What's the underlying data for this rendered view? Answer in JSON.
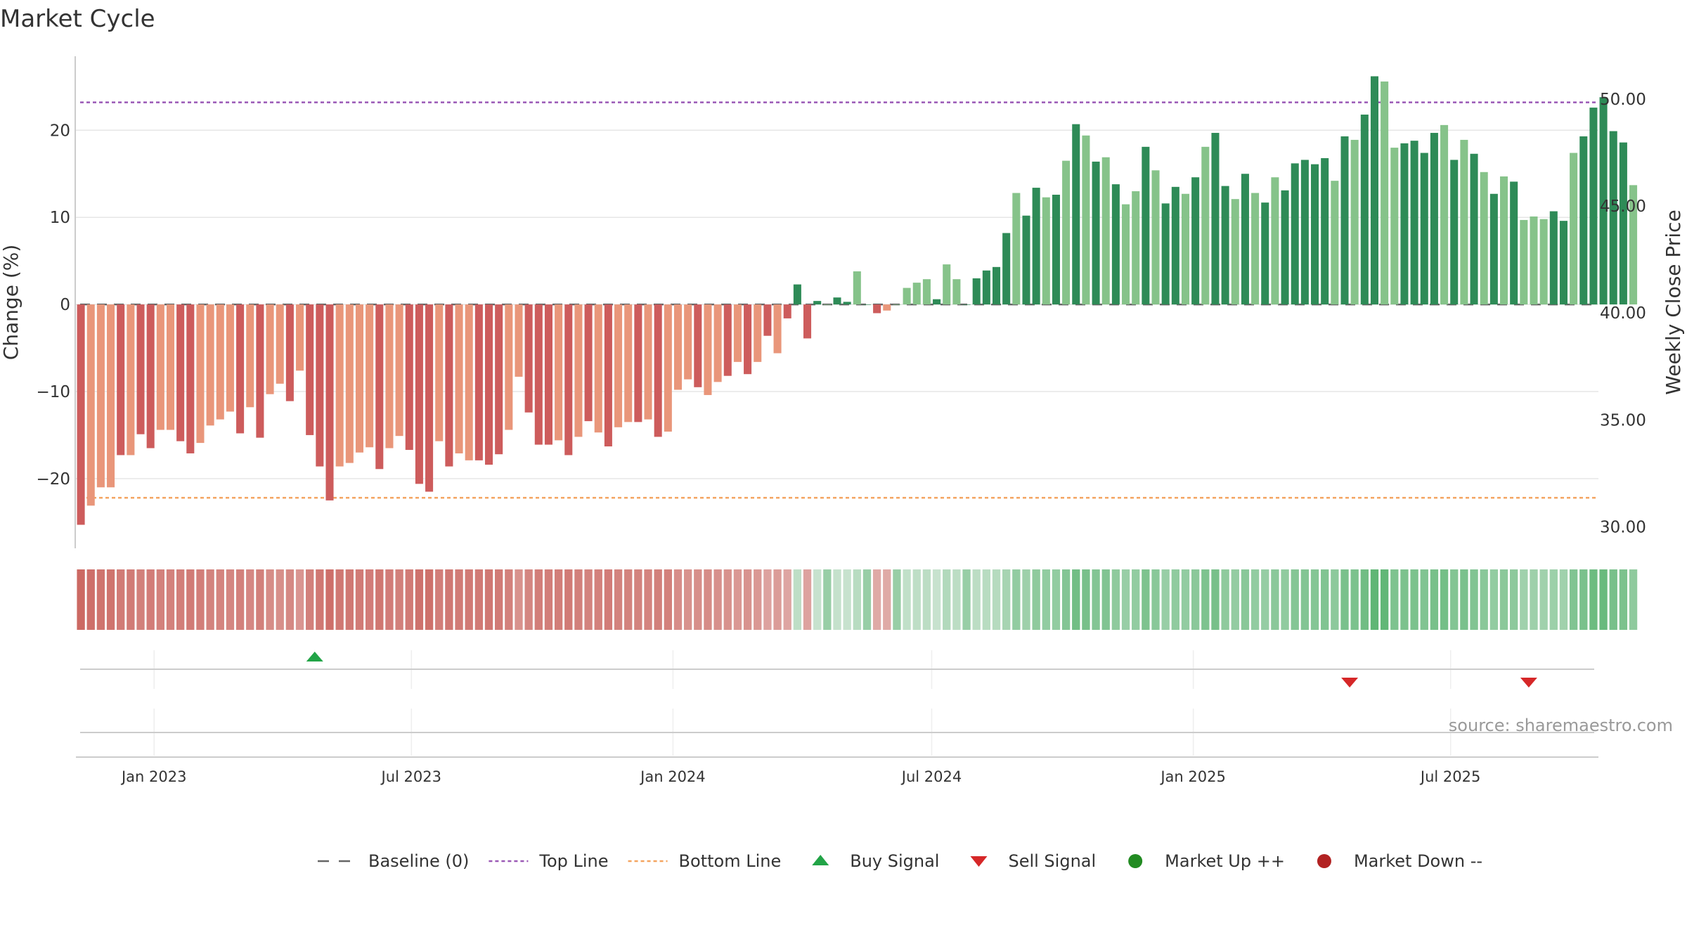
{
  "chart_data": {
    "type": "bar",
    "title": "Market Cycle",
    "ylabel_left": "Change (%)",
    "ylabel_right": "Weekly Close Price",
    "ylim_left": [
      -28,
      28.5
    ],
    "yticks_left": [
      -20,
      -10,
      0,
      10,
      20
    ],
    "ytick_labels_left": [
      "−20",
      "−10",
      "0",
      "10",
      "20"
    ],
    "ylim_right": [
      29.0,
      52.0
    ],
    "yticks_right": [
      30,
      35,
      40,
      45,
      50
    ],
    "ytick_labels_right": [
      "30.00",
      "35.00",
      "40.00",
      "45.00",
      "50.00"
    ],
    "top_line": 23.2,
    "bottom_line": -22.2,
    "baseline": 0,
    "x_start": "2022-11-07",
    "x_end": "2025-10-13",
    "week_start": "2022-11-07",
    "x_ticks": [
      "2023-01-01",
      "2023-07-01",
      "2024-01-01",
      "2024-07-01",
      "2025-01-01",
      "2025-07-01"
    ],
    "x_tick_labels": [
      "Jan 2023",
      "Jul 2023",
      "Jan 2024",
      "Jul 2024",
      "Jan 2025",
      "Jul 2025"
    ],
    "values": [
      -25.3,
      -23.1,
      -21.0,
      -21.0,
      -17.3,
      -17.3,
      -14.9,
      -16.5,
      -14.4,
      -14.4,
      -15.7,
      -17.1,
      -15.9,
      -13.9,
      -13.2,
      -12.3,
      -14.8,
      -11.8,
      -15.3,
      -10.3,
      -9.1,
      -11.1,
      -7.6,
      -15.0,
      -18.6,
      -22.5,
      -18.6,
      -18.2,
      -17.0,
      -16.4,
      -18.9,
      -16.5,
      -15.1,
      -16.7,
      -20.6,
      -21.5,
      -15.7,
      -18.6,
      -17.1,
      -17.9,
      -17.9,
      -18.4,
      -17.2,
      -14.4,
      -8.3,
      -12.4,
      -16.1,
      -16.1,
      -15.6,
      -17.3,
      -15.2,
      -13.4,
      -14.7,
      -16.3,
      -14.1,
      -13.5,
      -13.5,
      -13.2,
      -15.2,
      -14.6,
      -9.8,
      -8.6,
      -9.5,
      -10.4,
      -8.9,
      -8.2,
      -6.6,
      -8.0,
      -6.6,
      -3.6,
      -5.6,
      -1.6,
      2.3,
      -3.9,
      0.4,
      0.0,
      0.8,
      0.3,
      3.8,
      0.0,
      -1.0,
      -0.7,
      0.0,
      1.9,
      2.5,
      2.9,
      0.6,
      4.6,
      2.9,
      0.0,
      3.0,
      3.9,
      4.3,
      8.2,
      12.8,
      10.2,
      13.4,
      12.3,
      12.6,
      16.5,
      20.7,
      19.4,
      16.4,
      16.9,
      13.8,
      11.5,
      13.0,
      18.1,
      15.4,
      11.6,
      13.5,
      12.7,
      14.6,
      18.1,
      19.7,
      13.6,
      12.1,
      15.0,
      12.8,
      11.7,
      14.6,
      13.1,
      16.2,
      16.6,
      16.1,
      16.8,
      14.2,
      19.3,
      18.9,
      21.8,
      26.2,
      25.6,
      18.0,
      18.5,
      18.8,
      17.4,
      19.7,
      20.6,
      16.6,
      18.9,
      17.3,
      15.2,
      12.7,
      14.7,
      14.1,
      9.7,
      10.1,
      9.8,
      10.7,
      9.6,
      17.4,
      19.3,
      22.6,
      23.8,
      19.9,
      18.6,
      13.7
    ],
    "shade_codes": "DLLLDLDDLLDDLLLLDLDLLDLDDDLLLLDLLDDDLDLLDDDLLDDDLDLDLDLLDLDLLLDLLDLDLDLDDDDLDDLDDLLLLLDLLDDDDDLDDLDLDLDLDLLDLDDLDLDDLDLDLDDDDDLDLDDLLDDDDLDLDLDLDLLLDDLDDDDDLDL",
    "heat_strip": {
      "values": [
        0.94,
        0.9,
        0.87,
        0.87,
        0.82,
        0.82,
        0.79,
        0.81,
        0.78,
        0.78,
        0.8,
        0.82,
        0.8,
        0.77,
        0.76,
        0.75,
        0.78,
        0.74,
        0.79,
        0.71,
        0.69,
        0.73,
        0.65,
        0.79,
        0.84,
        0.9,
        0.84,
        0.84,
        0.82,
        0.81,
        0.85,
        0.81,
        0.79,
        0.82,
        0.88,
        0.89,
        0.8,
        0.84,
        0.82,
        0.83,
        0.83,
        0.84,
        0.82,
        0.78,
        0.67,
        0.75,
        0.8,
        0.8,
        0.8,
        0.82,
        0.79,
        0.77,
        0.78,
        0.81,
        0.77,
        0.77,
        0.77,
        0.76,
        0.79,
        0.78,
        0.7,
        0.67,
        0.69,
        0.71,
        0.68,
        0.67,
        0.63,
        0.66,
        0.63,
        0.56,
        0.6,
        0.54,
        0.3,
        0.56,
        0.25,
        0.5,
        0.26,
        0.25,
        0.33,
        0.5,
        0.51,
        0.51,
        0.5,
        0.28,
        0.3,
        0.31,
        0.25,
        0.36,
        0.31,
        0.5,
        0.31,
        0.33,
        0.34,
        0.42,
        0.53,
        0.47,
        0.55,
        0.53,
        0.53,
        0.61,
        0.7,
        0.67,
        0.61,
        0.62,
        0.55,
        0.5,
        0.53,
        0.64,
        0.58,
        0.5,
        0.54,
        0.53,
        0.57,
        0.64,
        0.67,
        0.55,
        0.52,
        0.58,
        0.53,
        0.51,
        0.57,
        0.54,
        0.6,
        0.61,
        0.6,
        0.62,
        0.56,
        0.66,
        0.65,
        0.71,
        0.8,
        0.79,
        0.64,
        0.65,
        0.65,
        0.62,
        0.67,
        0.69,
        0.61,
        0.66,
        0.62,
        0.58,
        0.53,
        0.57,
        0.56,
        0.46,
        0.47,
        0.46,
        0.48,
        0.46,
        0.62,
        0.66,
        0.73,
        0.75,
        0.67,
        0.65,
        0.55
      ]
    },
    "signals": [
      {
        "type": "buy",
        "date": "2023-04-24"
      },
      {
        "type": "sell",
        "date": "2025-04-21"
      },
      {
        "type": "sell",
        "date": "2025-08-25"
      }
    ],
    "colors": {
      "up_dark": "#2e8b57",
      "up_light": "#86c38a",
      "down_dark": "#cd5c5c",
      "down_light": "#e9967a",
      "top_line": "#9b59b6",
      "bottom_line": "#f4a460",
      "baseline": "#666666",
      "buy": "#22a447",
      "sell": "#d62728",
      "market_up": "#228b22",
      "market_down": "#b22222"
    },
    "legend": [
      {
        "key": "baseline",
        "label": "Baseline (0)"
      },
      {
        "key": "top_line",
        "label": "Top Line"
      },
      {
        "key": "bottom_line",
        "label": "Bottom Line"
      },
      {
        "key": "buy",
        "label": "Buy Signal"
      },
      {
        "key": "sell",
        "label": "Sell Signal"
      },
      {
        "key": "market_up",
        "label": "Market Up ++"
      },
      {
        "key": "market_down",
        "label": "Market Down --"
      }
    ],
    "legend_placement": "bottom-center",
    "grid": true,
    "source": "source: sharemaestro.com"
  }
}
